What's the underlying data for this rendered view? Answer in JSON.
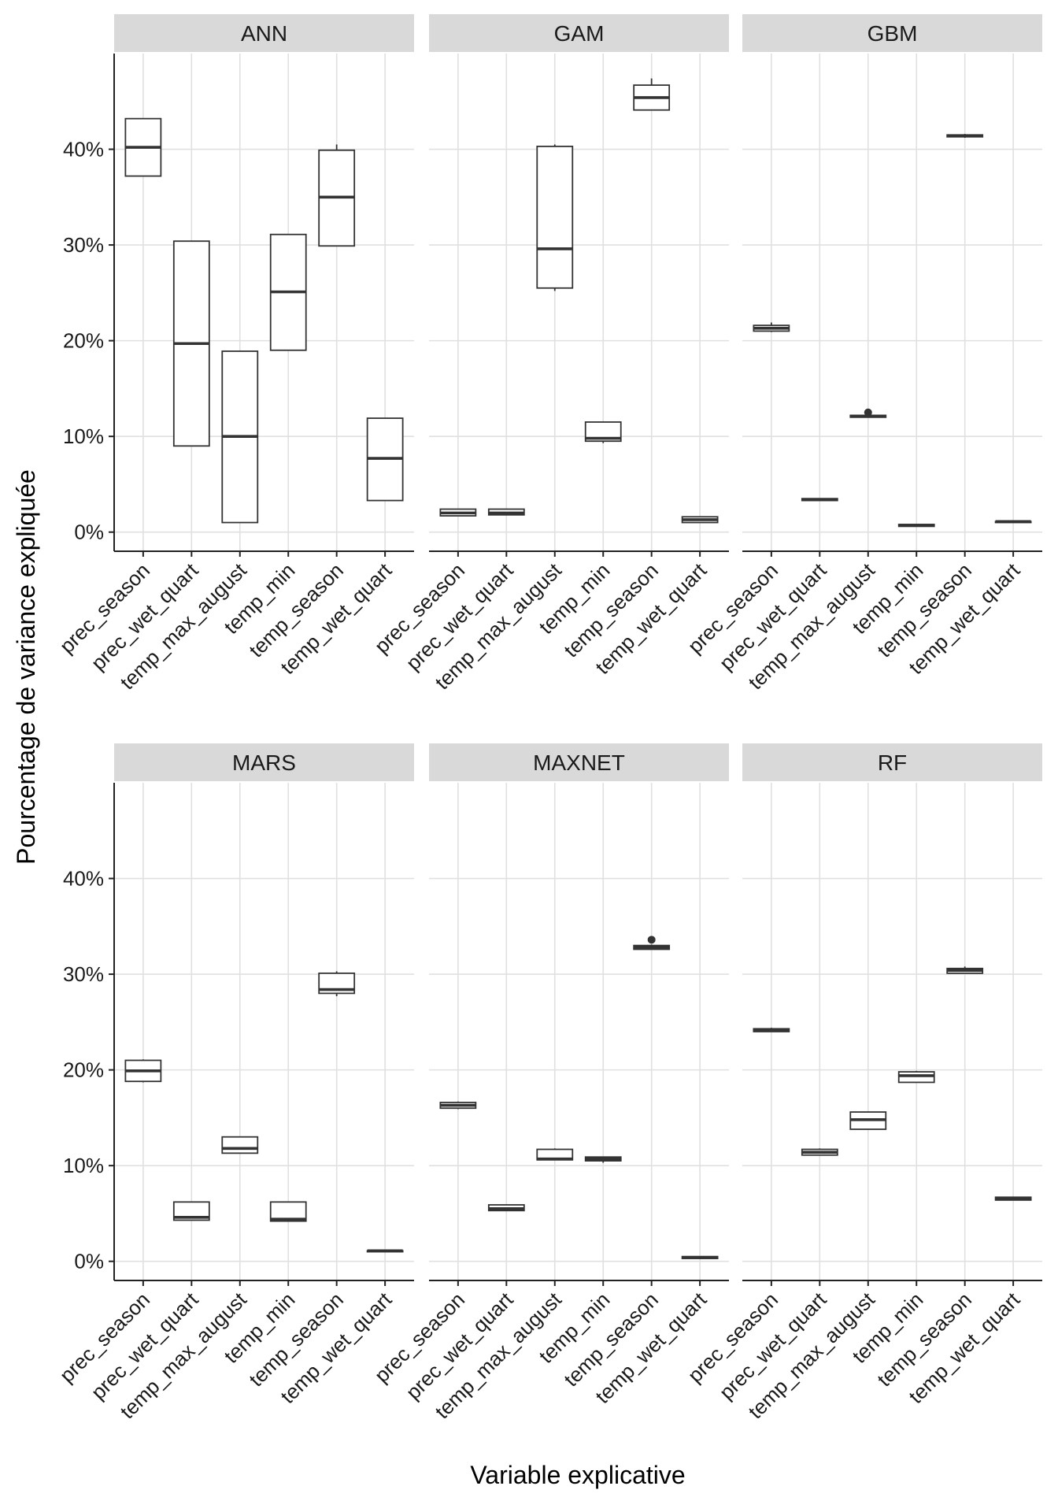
{
  "chart_data": {
    "type": "boxplot",
    "facet_layout": "3 columns x 2 rows, shared y axis",
    "xlabel": "Variable explicative",
    "ylabel": "Pourcentage de variance expliquée",
    "ylim": [
      -2,
      50
    ],
    "y_ticks": [
      0,
      10,
      20,
      30,
      40
    ],
    "y_tick_labels": [
      "0%",
      "10%",
      "20%",
      "30%",
      "40%"
    ],
    "categories": [
      "prec_season",
      "prec_wet_quart",
      "temp_max_august",
      "temp_min",
      "temp_season",
      "temp_wet_quart"
    ],
    "panels": [
      {
        "title": "ANN",
        "boxes": [
          {
            "min": 37.2,
            "q1": 37.2,
            "median": 40.2,
            "q3": 43.2,
            "max": 43.2,
            "outliers": []
          },
          {
            "min": 9.0,
            "q1": 9.0,
            "median": 19.7,
            "q3": 30.4,
            "max": 30.4,
            "outliers": []
          },
          {
            "min": 1.0,
            "q1": 1.0,
            "median": 10.0,
            "q3": 18.9,
            "max": 18.9,
            "outliers": []
          },
          {
            "min": 19.0,
            "q1": 19.0,
            "median": 25.1,
            "q3": 31.1,
            "max": 31.1,
            "outliers": []
          },
          {
            "min": 29.9,
            "q1": 29.9,
            "median": 35.0,
            "q3": 39.9,
            "max": 40.5,
            "outliers": []
          },
          {
            "min": 3.3,
            "q1": 3.3,
            "median": 7.7,
            "q3": 11.9,
            "max": 11.9,
            "outliers": []
          }
        ]
      },
      {
        "title": "GAM",
        "boxes": [
          {
            "min": 1.7,
            "q1": 1.7,
            "median": 2.0,
            "q3": 2.4,
            "max": 2.4,
            "outliers": []
          },
          {
            "min": 1.8,
            "q1": 1.8,
            "median": 2.0,
            "q3": 2.4,
            "max": 2.4,
            "outliers": []
          },
          {
            "min": 25.2,
            "q1": 25.5,
            "median": 29.6,
            "q3": 40.3,
            "max": 40.5,
            "outliers": []
          },
          {
            "min": 9.3,
            "q1": 9.5,
            "median": 9.8,
            "q3": 11.5,
            "max": 11.5,
            "outliers": []
          },
          {
            "min": 44.1,
            "q1": 44.1,
            "median": 45.4,
            "q3": 46.7,
            "max": 47.4,
            "outliers": []
          },
          {
            "min": 1.0,
            "q1": 1.0,
            "median": 1.3,
            "q3": 1.6,
            "max": 1.6,
            "outliers": []
          }
        ]
      },
      {
        "title": "GBM",
        "boxes": [
          {
            "min": 20.9,
            "q1": 21.0,
            "median": 21.3,
            "q3": 21.6,
            "max": 21.9,
            "outliers": []
          },
          {
            "min": 3.3,
            "q1": 3.3,
            "median": 3.4,
            "q3": 3.5,
            "max": 3.5,
            "outliers": []
          },
          {
            "min": 12.0,
            "q1": 12.0,
            "median": 12.1,
            "q3": 12.2,
            "max": 12.2,
            "outliers": [
              12.5
            ]
          },
          {
            "min": 0.6,
            "q1": 0.6,
            "median": 0.7,
            "q3": 0.8,
            "max": 0.8,
            "outliers": []
          },
          {
            "min": 41.2,
            "q1": 41.3,
            "median": 41.4,
            "q3": 41.5,
            "max": 41.6,
            "outliers": []
          },
          {
            "min": 1.0,
            "q1": 1.0,
            "median": 1.1,
            "q3": 1.1,
            "max": 1.1,
            "outliers": []
          }
        ]
      },
      {
        "title": "MARS",
        "boxes": [
          {
            "min": 18.7,
            "q1": 18.8,
            "median": 19.9,
            "q3": 21.0,
            "max": 21.1,
            "outliers": []
          },
          {
            "min": 4.3,
            "q1": 4.3,
            "median": 4.6,
            "q3": 6.2,
            "max": 6.2,
            "outliers": []
          },
          {
            "min": 11.3,
            "q1": 11.3,
            "median": 11.8,
            "q3": 13.0,
            "max": 13.0,
            "outliers": []
          },
          {
            "min": 4.2,
            "q1": 4.2,
            "median": 4.4,
            "q3": 6.2,
            "max": 6.2,
            "outliers": []
          },
          {
            "min": 27.7,
            "q1": 28.0,
            "median": 28.4,
            "q3": 30.1,
            "max": 30.3,
            "outliers": []
          },
          {
            "min": 1.0,
            "q1": 1.0,
            "median": 1.1,
            "q3": 1.1,
            "max": 1.1,
            "outliers": []
          }
        ]
      },
      {
        "title": "MAXNET",
        "boxes": [
          {
            "min": 15.9,
            "q1": 16.0,
            "median": 16.3,
            "q3": 16.6,
            "max": 16.7,
            "outliers": []
          },
          {
            "min": 5.3,
            "q1": 5.3,
            "median": 5.5,
            "q3": 5.9,
            "max": 5.9,
            "outliers": []
          },
          {
            "min": 10.6,
            "q1": 10.6,
            "median": 10.7,
            "q3": 11.7,
            "max": 11.8,
            "outliers": []
          },
          {
            "min": 10.3,
            "q1": 10.5,
            "median": 10.7,
            "q3": 10.9,
            "max": 10.9,
            "outliers": []
          },
          {
            "min": 32.6,
            "q1": 32.6,
            "median": 32.8,
            "q3": 33.0,
            "max": 33.1,
            "outliers": [
              33.6
            ]
          },
          {
            "min": 0.3,
            "q1": 0.3,
            "median": 0.4,
            "q3": 0.5,
            "max": 0.5,
            "outliers": []
          }
        ]
      },
      {
        "title": "RF",
        "boxes": [
          {
            "min": 24.0,
            "q1": 24.0,
            "median": 24.2,
            "q3": 24.3,
            "max": 24.4,
            "outliers": []
          },
          {
            "min": 11.1,
            "q1": 11.1,
            "median": 11.4,
            "q3": 11.7,
            "max": 11.8,
            "outliers": []
          },
          {
            "min": 13.8,
            "q1": 13.8,
            "median": 14.8,
            "q3": 15.6,
            "max": 15.6,
            "outliers": []
          },
          {
            "min": 18.7,
            "q1": 18.7,
            "median": 19.4,
            "q3": 19.8,
            "max": 19.9,
            "outliers": []
          },
          {
            "min": 30.1,
            "q1": 30.1,
            "median": 30.4,
            "q3": 30.6,
            "max": 30.8,
            "outliers": []
          },
          {
            "min": 6.4,
            "q1": 6.4,
            "median": 6.6,
            "q3": 6.7,
            "max": 6.7,
            "outliers": []
          }
        ]
      }
    ]
  }
}
